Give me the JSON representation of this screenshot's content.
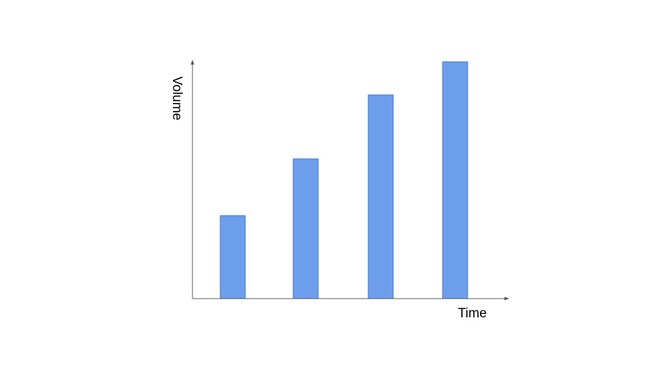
{
  "chart_data": {
    "type": "bar",
    "title": "",
    "xlabel": "Time",
    "ylabel": "Volume",
    "categories": [
      "",
      "",
      "",
      ""
    ],
    "values": [
      35,
      59,
      86,
      100
    ],
    "ylim": [
      0,
      100
    ],
    "grid": false,
    "legend": "none",
    "colors": {
      "bar_fill": "#6d9eeb",
      "bar_stroke": "#3c78d8",
      "axis": "#595959",
      "text": "#000000"
    }
  }
}
